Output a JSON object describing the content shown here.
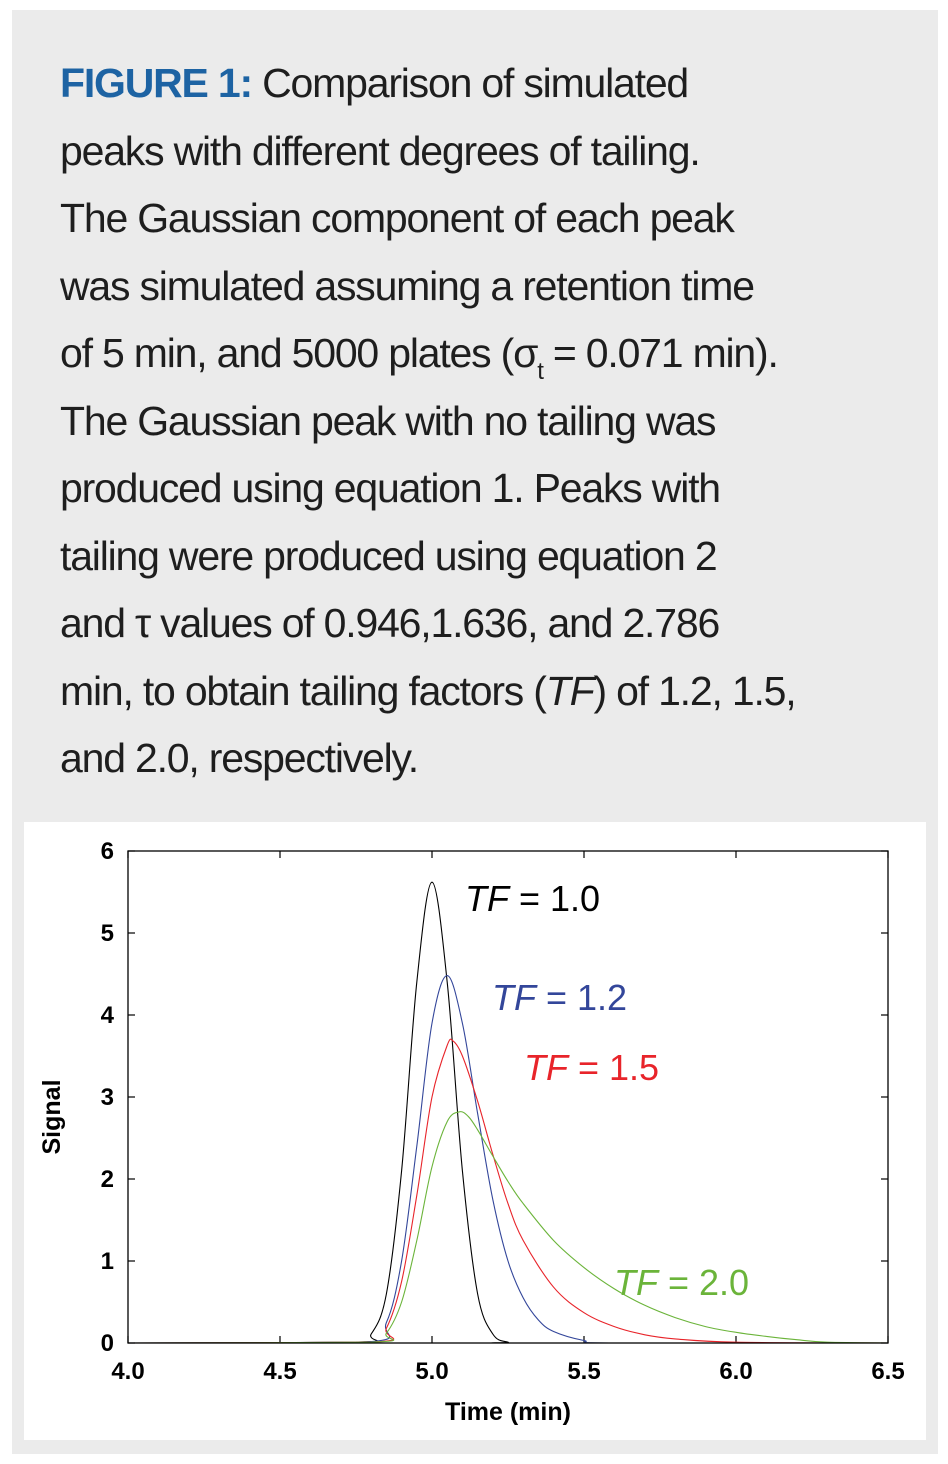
{
  "caption": {
    "label": "FIGURE 1:",
    "lines": [
      " Comparison of simulated",
      "peaks with different degrees of tailing.",
      "The Gaussian component of each peak",
      "was simulated assuming a retention time",
      "of 5 min, and 5000 plates (σ",
      "t",
      " = 0.071 min).",
      "The Gaussian peak with no tailing was",
      "produced using equation 1. Peaks with",
      "tailing were produced using equation 2",
      "and τ values of 0.946,1.636, and 2.786",
      "min, to obtain tailing factors (",
      "TF",
      ") of 1.2, 1.5,",
      "and 2.0, respectively."
    ]
  },
  "chart_data": {
    "type": "line",
    "xlabel": "Time (min)",
    "ylabel": "Signal",
    "xlim": [
      4.0,
      6.5
    ],
    "ylim": [
      0,
      6
    ],
    "xticks": [
      "4.0",
      "4.5",
      "5.0",
      "5.5",
      "6.0",
      "6.5"
    ],
    "yticks": [
      "0",
      "1",
      "2",
      "3",
      "4",
      "5",
      "6"
    ],
    "grid": false,
    "series": [
      {
        "name_italic": "TF",
        "name_rest": " = 1.0",
        "color": "#000000",
        "points": [
          [
            4.0,
            0
          ],
          [
            4.75,
            0.01
          ],
          [
            4.8,
            0.11
          ],
          [
            4.85,
            0.6
          ],
          [
            4.9,
            2.1
          ],
          [
            4.95,
            4.4
          ],
          [
            5.0,
            5.62
          ],
          [
            5.05,
            4.4
          ],
          [
            5.1,
            2.1
          ],
          [
            5.15,
            0.6
          ],
          [
            5.2,
            0.11
          ],
          [
            5.25,
            0.01
          ],
          [
            5.3,
            0
          ],
          [
            6.5,
            0
          ]
        ]
      },
      {
        "name_italic": "TF",
        "name_rest": " = 1.2",
        "color": "#33469a",
        "points": [
          [
            4.0,
            0
          ],
          [
            4.78,
            0.01
          ],
          [
            4.85,
            0.25
          ],
          [
            4.9,
            1.0
          ],
          [
            4.95,
            2.4
          ],
          [
            5.0,
            3.9
          ],
          [
            5.05,
            4.48
          ],
          [
            5.1,
            3.9
          ],
          [
            5.15,
            2.8
          ],
          [
            5.2,
            1.75
          ],
          [
            5.25,
            1.0
          ],
          [
            5.3,
            0.55
          ],
          [
            5.35,
            0.28
          ],
          [
            5.4,
            0.14
          ],
          [
            5.5,
            0.03
          ],
          [
            5.6,
            0
          ],
          [
            6.5,
            0
          ]
        ]
      },
      {
        "name_italic": "TF",
        "name_rest": " = 1.5",
        "color": "#e8242a",
        "points": [
          [
            4.0,
            0
          ],
          [
            4.8,
            0.01
          ],
          [
            4.85,
            0.18
          ],
          [
            4.9,
            0.75
          ],
          [
            4.95,
            1.8
          ],
          [
            5.0,
            3.0
          ],
          [
            5.05,
            3.63
          ],
          [
            5.07,
            3.68
          ],
          [
            5.1,
            3.5
          ],
          [
            5.15,
            2.95
          ],
          [
            5.2,
            2.3
          ],
          [
            5.25,
            1.7
          ],
          [
            5.3,
            1.25
          ],
          [
            5.4,
            0.68
          ],
          [
            5.5,
            0.37
          ],
          [
            5.6,
            0.2
          ],
          [
            5.7,
            0.1
          ],
          [
            5.8,
            0.05
          ],
          [
            6.0,
            0.01
          ],
          [
            6.5,
            0
          ]
        ]
      },
      {
        "name_italic": "TF",
        "name_rest": " = 2.0",
        "color": "#6bb43a",
        "points": [
          [
            4.0,
            0
          ],
          [
            4.8,
            0.01
          ],
          [
            4.85,
            0.12
          ],
          [
            4.9,
            0.5
          ],
          [
            4.95,
            1.25
          ],
          [
            5.0,
            2.15
          ],
          [
            5.05,
            2.7
          ],
          [
            5.09,
            2.82
          ],
          [
            5.12,
            2.76
          ],
          [
            5.15,
            2.6
          ],
          [
            5.2,
            2.28
          ],
          [
            5.25,
            1.97
          ],
          [
            5.3,
            1.7
          ],
          [
            5.4,
            1.25
          ],
          [
            5.5,
            0.92
          ],
          [
            5.6,
            0.66
          ],
          [
            5.7,
            0.46
          ],
          [
            5.8,
            0.31
          ],
          [
            5.9,
            0.2
          ],
          [
            6.0,
            0.13
          ],
          [
            6.1,
            0.08
          ],
          [
            6.2,
            0.04
          ],
          [
            6.3,
            0.01
          ],
          [
            6.5,
            0
          ]
        ]
      }
    ]
  }
}
